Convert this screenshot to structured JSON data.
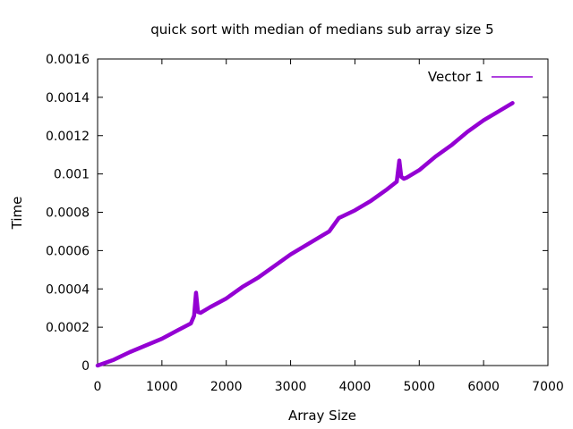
{
  "chart_data": {
    "type": "line",
    "title": "quick sort with median of medians sub array size 5",
    "xlabel": "Array Size",
    "ylabel": "Time",
    "xlim": [
      0,
      7000
    ],
    "ylim": [
      0,
      0.0016
    ],
    "x_ticks": [
      "0",
      "1000",
      "2000",
      "3000",
      "4000",
      "5000",
      "6000",
      "7000"
    ],
    "y_ticks": [
      "0",
      "0.0002",
      "0.0004",
      "0.0006",
      "0.0008",
      "0.001",
      "0.0012",
      "0.0014",
      "0.0016"
    ],
    "grid": false,
    "legend_position": "top-right",
    "series": [
      {
        "name": "Vector 1",
        "color": "#9400d3",
        "x": [
          0,
          250,
          500,
          750,
          1000,
          1250,
          1450,
          1500,
          1530,
          1560,
          1600,
          1750,
          2000,
          2250,
          2500,
          2750,
          3000,
          3250,
          3500,
          3600,
          3750,
          4000,
          4250,
          4500,
          4650,
          4690,
          4720,
          4760,
          4800,
          5000,
          5250,
          5500,
          5750,
          6000,
          6250,
          6450
        ],
        "y": [
          0,
          3e-05,
          7e-05,
          0.000105,
          0.00014,
          0.000185,
          0.00022,
          0.00026,
          0.00038,
          0.00028,
          0.000275,
          0.000305,
          0.00035,
          0.00041,
          0.00046,
          0.00052,
          0.00058,
          0.00063,
          0.00068,
          0.0007,
          0.00077,
          0.00081,
          0.00086,
          0.00092,
          0.00096,
          0.00107,
          0.000985,
          0.000975,
          0.00098,
          0.00102,
          0.00109,
          0.00115,
          0.00122,
          0.00128,
          0.00133,
          0.00137
        ]
      }
    ]
  }
}
